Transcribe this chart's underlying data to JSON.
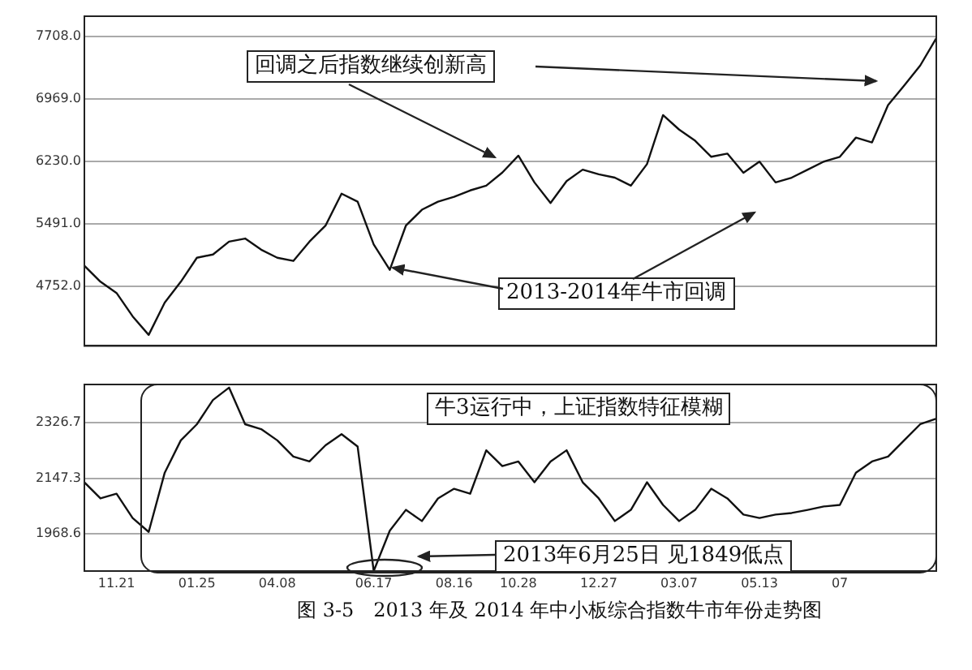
{
  "chart_data": [
    {
      "type": "line",
      "categories": [
        null,
        null,
        null,
        null,
        null,
        null,
        null,
        null,
        null,
        null,
        null,
        null,
        null,
        null,
        null,
        null,
        null,
        null,
        null,
        null,
        null,
        null,
        null,
        null,
        null,
        null,
        null,
        null,
        null,
        null,
        null,
        null,
        null,
        null,
        null,
        null,
        null,
        null,
        null,
        null,
        null,
        null,
        null,
        null,
        null,
        null,
        null,
        null,
        null,
        null,
        null,
        null,
        null,
        null
      ],
      "series": [
        {
          "color": "#111111",
          "values": [
            4998,
            4809,
            4676,
            4400,
            4180,
            4563,
            4809,
            5093,
            5131,
            5283,
            5320,
            5188,
            5093,
            5055,
            5283,
            5472,
            5851,
            5756,
            5250,
            4950,
            5472,
            5661,
            5756,
            5813,
            5889,
            5946,
            6100,
            6300,
            5984,
            5740,
            6000,
            6135,
            6080,
            6040,
            5946,
            6200,
            6780,
            6609,
            6476,
            6287,
            6325,
            6097,
            6230,
            5984,
            6040,
            6135,
            6230,
            6287,
            6514,
            6457,
            6900,
            7130,
            7367,
            7690
          ]
        }
      ],
      "ylim": [
        4050,
        7950
      ],
      "yticks": [
        {
          "value": 4752,
          "label": "4752.0"
        },
        {
          "value": 5491,
          "label": "5491.0"
        },
        {
          "value": 6230,
          "label": "6230.0"
        },
        {
          "value": 6969,
          "label": "6969.0"
        },
        {
          "value": 7708,
          "label": "7708.0"
        }
      ],
      "grid": "y",
      "tick_labels": "y",
      "legend": false,
      "marker": "none",
      "line_style": "solid",
      "annotations": [
        "回调之后指数继续创新高",
        "2013-2014年牛市回调"
      ]
    },
    {
      "type": "line",
      "categories": [
        null,
        null,
        "11.21",
        null,
        null,
        null,
        null,
        "01.25",
        null,
        null,
        null,
        null,
        "04.08",
        null,
        null,
        null,
        null,
        null,
        "06.17",
        null,
        null,
        null,
        null,
        "08.16",
        null,
        null,
        null,
        "10.28",
        null,
        null,
        null,
        null,
        "12.27",
        null,
        null,
        null,
        null,
        "03.07",
        null,
        null,
        null,
        null,
        "05.13",
        null,
        null,
        null,
        null,
        "07",
        null,
        null,
        null,
        null,
        null,
        null
      ],
      "series": [
        {
          "color": "#111111",
          "values": [
            2135,
            2083,
            2098,
            2020,
            1975,
            2166,
            2270,
            2322,
            2400,
            2440,
            2322,
            2306,
            2270,
            2218,
            2202,
            2254,
            2290,
            2250,
            1849,
            1979,
            2046,
            2010,
            2083,
            2114,
            2098,
            2238,
            2187,
            2202,
            2135,
            2202,
            2238,
            2135,
            2083,
            2010,
            2046,
            2135,
            2062,
            2010,
            2046,
            2114,
            2083,
            2031,
            2020,
            2031,
            2036,
            2046,
            2057,
            2062,
            2166,
            2202,
            2218,
            2270,
            2322,
            2340
          ]
        }
      ],
      "ylim": [
        1849,
        2450
      ],
      "yticks": [
        1968.6,
        2147.3,
        2326.7
      ],
      "grid": "y",
      "legend": false,
      "marker": "none",
      "line_style": "solid",
      "annotations": [
        "牛3运行中，上证指数特征模糊",
        "2013年6月25日 见1849低点",
        "图 3-5　2013 年及 2014 年中小板综合指数牛市年份走势图"
      ]
    }
  ]
}
